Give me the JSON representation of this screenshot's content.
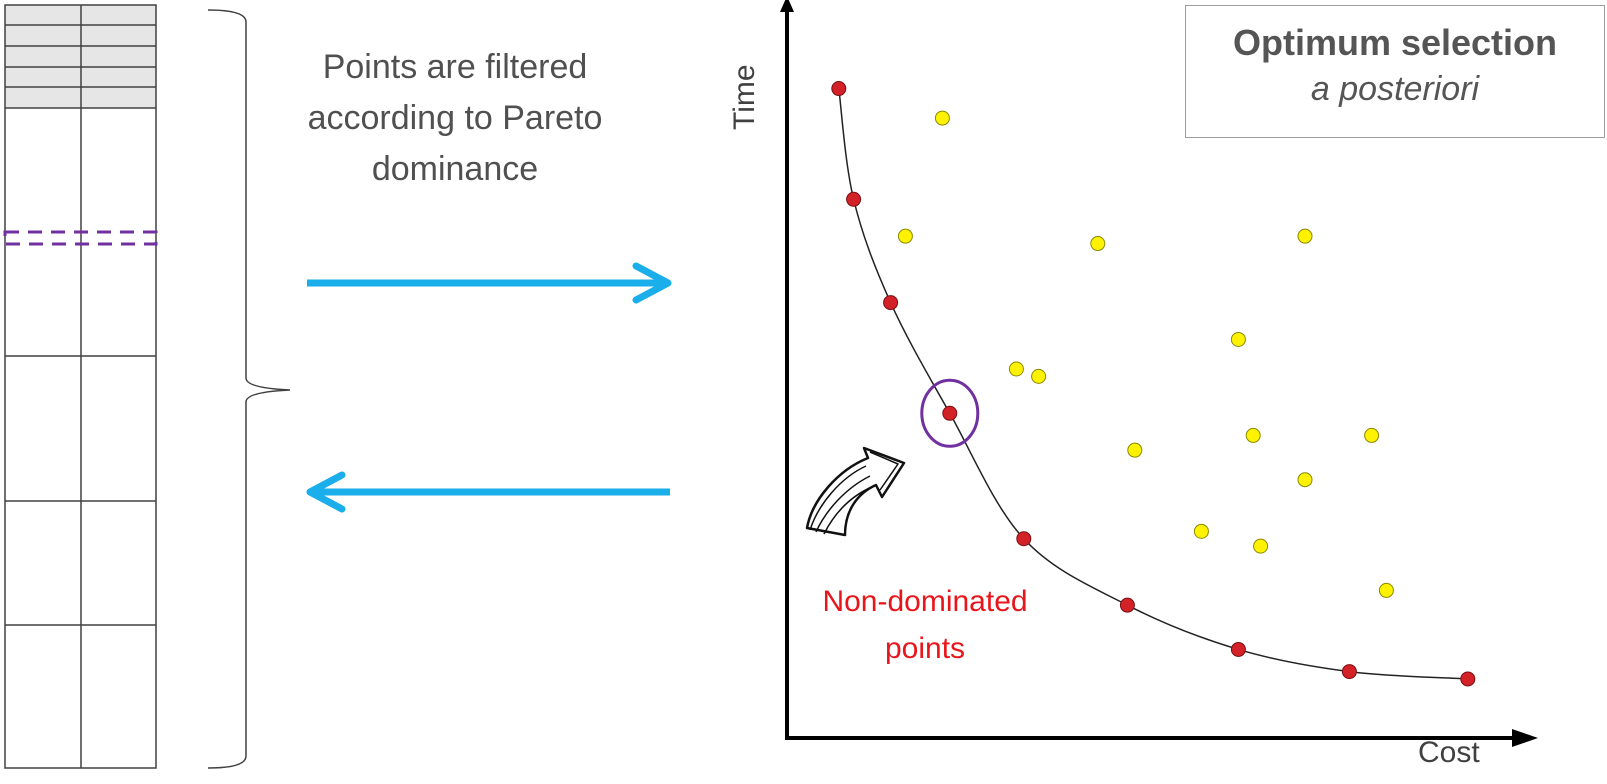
{
  "filter_text": "Points are filtered according to Pareto dominance",
  "title_box": {
    "main": "Optimum selection",
    "sub": "a posteriori"
  },
  "non_dominated_label": "Non-dominated points",
  "colors": {
    "arrow": "#1aaeea",
    "front_point": "#d32128",
    "other_point": "#fff200",
    "highlight": "#7030a0",
    "text_red": "#e8161b"
  },
  "chart_data": {
    "type": "scatter",
    "title": "",
    "xlabel": "Cost",
    "ylabel": "Time",
    "note": "values estimated on arbitrary axis units (0-100), no tick labels shown",
    "series": [
      {
        "name": "Non-dominated points",
        "points": [
          [
            7,
            88
          ],
          [
            9,
            73
          ],
          [
            14,
            59
          ],
          [
            22,
            44
          ],
          [
            32,
            27
          ],
          [
            46,
            18
          ],
          [
            61,
            12
          ],
          [
            76,
            9
          ],
          [
            92,
            8
          ]
        ]
      },
      {
        "points": [
          [
            21,
            84
          ],
          [
            16,
            68
          ],
          [
            42,
            67
          ],
          [
            70,
            68
          ],
          [
            31,
            50
          ],
          [
            34,
            49
          ],
          [
            61,
            54
          ],
          [
            47,
            39
          ],
          [
            63,
            41
          ],
          [
            79,
            41
          ],
          [
            70,
            35
          ],
          [
            56,
            28
          ],
          [
            64,
            26
          ],
          [
            81,
            20
          ]
        ]
      }
    ],
    "highlighted_point": [
      22,
      44
    ]
  }
}
